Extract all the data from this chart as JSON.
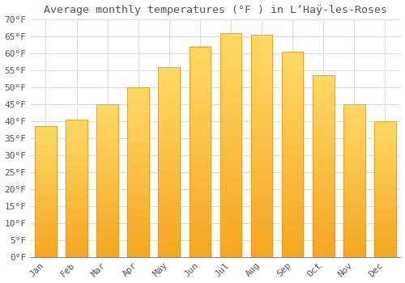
{
  "title": "Average monthly temperatures (°F ) in L’Haÿ-les-Roses",
  "months": [
    "Jan",
    "Feb",
    "Mar",
    "Apr",
    "May",
    "Jun",
    "Jul",
    "Aug",
    "Sep",
    "Oct",
    "Nov",
    "Dec"
  ],
  "values": [
    38.5,
    40.5,
    45.0,
    50.0,
    56.0,
    62.0,
    66.0,
    65.5,
    60.5,
    53.5,
    45.0,
    40.0
  ],
  "bar_color_bottom": "#F5A623",
  "bar_color_top": "#FFD966",
  "bar_edge_color": "#E8960A",
  "background_color": "#FFFFFF",
  "grid_color": "#DDDDDD",
  "text_color": "#555555",
  "ylim": [
    0,
    70
  ],
  "yticks": [
    0,
    5,
    10,
    15,
    20,
    25,
    30,
    35,
    40,
    45,
    50,
    55,
    60,
    65,
    70
  ],
  "title_fontsize": 9.5,
  "tick_fontsize": 8,
  "font_family": "monospace"
}
